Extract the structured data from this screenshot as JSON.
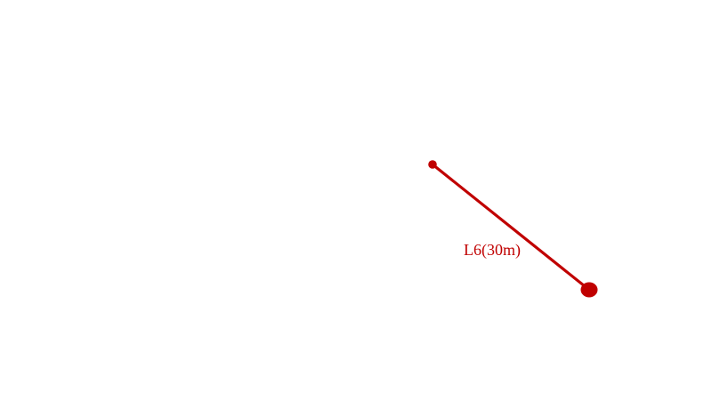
{
  "segment": {
    "label": "L6(30m)",
    "color": "#c00000"
  }
}
